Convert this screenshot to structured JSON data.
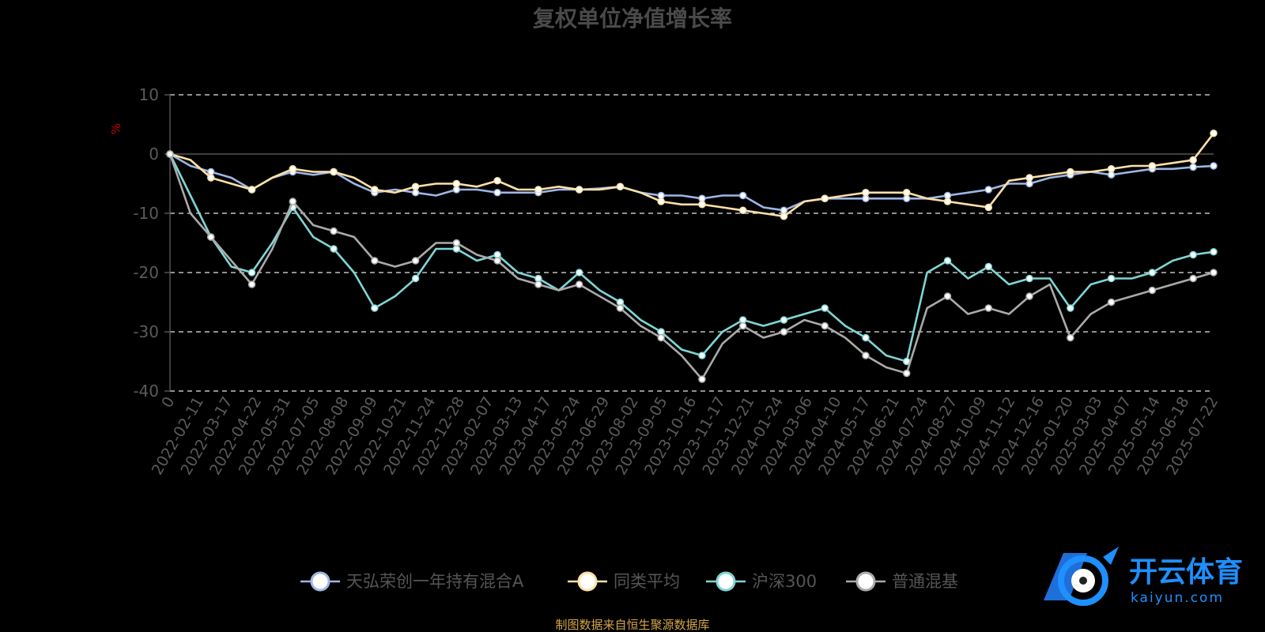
{
  "chart_data": {
    "type": "line",
    "title": "复权单位净值增长率",
    "ylabel": "%",
    "ylim": [
      -40,
      10
    ],
    "yticks": [
      10,
      0,
      -10,
      -20,
      -30,
      -40
    ],
    "x_ticks": [
      "0",
      "2022-02-11",
      "2022-03-17",
      "2022-04-22",
      "2022-05-31",
      "2022-07-05",
      "2022-08-08",
      "2022-09-09",
      "2022-10-21",
      "2022-11-24",
      "2022-12-28",
      "2023-02-07",
      "2023-03-13",
      "2023-04-17",
      "2023-05-24",
      "2023-06-29",
      "2023-08-02",
      "2023-09-05",
      "2023-10-16",
      "2023-11-17",
      "2023-12-21",
      "2024-01-24",
      "2024-03-06",
      "2024-04-10",
      "2024-05-17",
      "2024-06-21",
      "2024-07-24",
      "2024-08-27",
      "2024-10-09",
      "2024-11-12",
      "2024-12-16",
      "2025-01-20",
      "2025-03-03",
      "2025-04-07",
      "2025-05-14",
      "2025-06-18",
      "2025-07-22"
    ],
    "grid": true,
    "legend_position": "bottom",
    "series": [
      {
        "name": "天弘荣创一年持有混合A",
        "color": "#9eb6e6",
        "values": [
          0,
          -2,
          -3,
          -4,
          -6,
          -4,
          -3,
          -3.5,
          -3,
          -5,
          -6.5,
          -6,
          -6.5,
          -7,
          -6,
          -6,
          -6.5,
          -6.5,
          -6.5,
          -6,
          -6,
          -5.8,
          -5.5,
          -6.5,
          -7,
          -7,
          -7.5,
          -7,
          -7,
          -9,
          -9.5,
          -8,
          -7.5,
          -7.5,
          -7.5,
          -7.5,
          -7.5,
          -7.5,
          -7,
          -6.5,
          -6,
          -5,
          -5,
          -4,
          -3.5,
          -3,
          -3.5,
          -3,
          -2.5,
          -2.5,
          -2.2,
          -2
        ]
      },
      {
        "name": "同类平均",
        "color": "#ffe0a6",
        "values": [
          0,
          -1,
          -4,
          -5,
          -6,
          -4,
          -2.5,
          -3,
          -3,
          -4,
          -6,
          -6.5,
          -5.5,
          -5,
          -5,
          -5.5,
          -4.5,
          -6,
          -6,
          -5.5,
          -6,
          -6,
          -5.5,
          -6.5,
          -8,
          -8.5,
          -8.5,
          -9,
          -9.5,
          -10,
          -10.5,
          -8,
          -7.5,
          -7,
          -6.5,
          -6.5,
          -6.5,
          -7.5,
          -8,
          -8.5,
          -9,
          -4.5,
          -4,
          -3.5,
          -3,
          -3,
          -2.5,
          -2,
          -2,
          -1.5,
          -1,
          3.5
        ]
      },
      {
        "name": "沪深300",
        "color": "#7fd6d6",
        "values": [
          0,
          -7,
          -14,
          -19,
          -20,
          -15,
          -9,
          -14,
          -16,
          -20,
          -26,
          -24,
          -21,
          -16,
          -16,
          -18,
          -17,
          -20,
          -21,
          -23,
          -20,
          -23,
          -25,
          -28,
          -30,
          -33,
          -34,
          -30,
          -28,
          -29,
          -28,
          -27,
          -26,
          -29,
          -31,
          -34,
          -35,
          -20,
          -18,
          -21,
          -19,
          -22,
          -21,
          -21,
          -26,
          -22,
          -21,
          -21,
          -20,
          -18,
          -17,
          -16.5
        ]
      },
      {
        "name": "普通混基",
        "color": "#aaaaaa",
        "values": [
          0,
          -10,
          -14,
          -18,
          -22,
          -16,
          -8,
          -12,
          -13,
          -14,
          -18,
          -19,
          -18,
          -15,
          -15,
          -17,
          -18,
          -21,
          -22,
          -23,
          -22,
          -24,
          -26,
          -29,
          -31,
          -34,
          -38,
          -32,
          -29,
          -31,
          -30,
          -28,
          -29,
          -31,
          -34,
          -36,
          -37,
          -26,
          -24,
          -27,
          -26,
          -27,
          -24,
          -22,
          -31,
          -27,
          -25,
          -24,
          -23,
          -22,
          -21,
          -20
        ]
      }
    ]
  },
  "source_note": "制图数据来自恒生聚源数据库",
  "watermark": {
    "brand_cn": "开云体育",
    "brand_url": "kaiyun.com"
  }
}
